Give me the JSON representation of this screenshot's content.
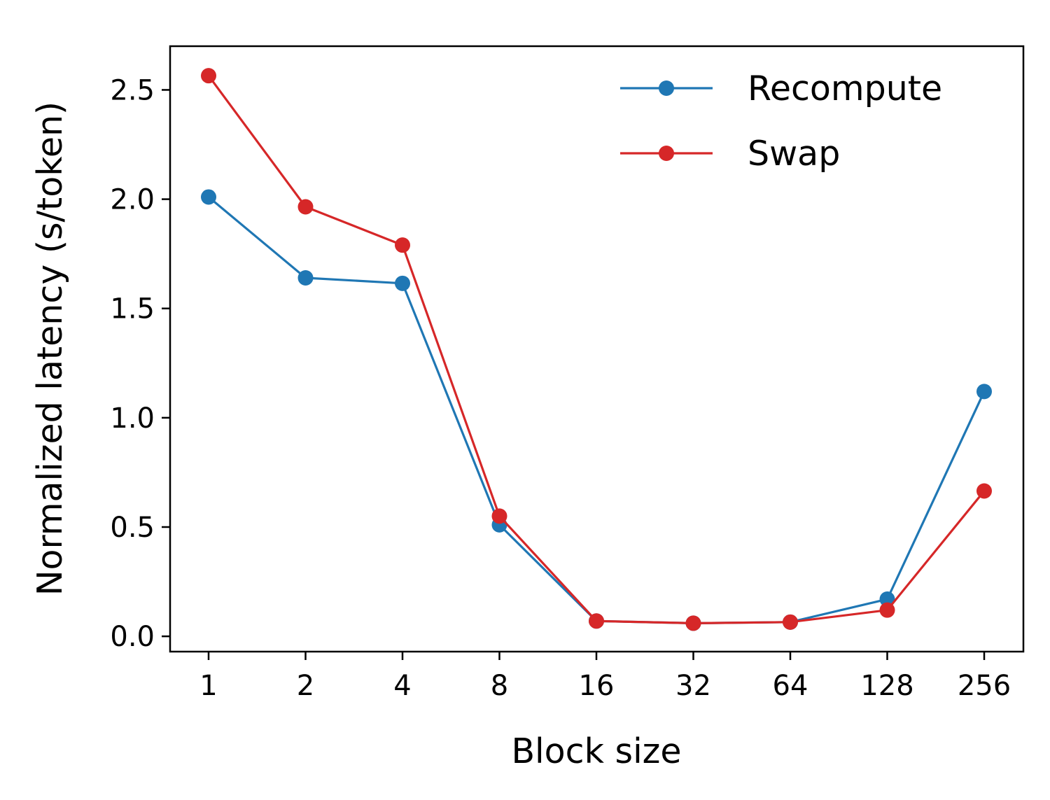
{
  "chart_data": {
    "type": "line",
    "xlabel": "Block size",
    "ylabel": "Normalized latency (s/token)",
    "categories": [
      "1",
      "2",
      "4",
      "8",
      "16",
      "32",
      "64",
      "128",
      "256"
    ],
    "y_ticks": [
      "0.0",
      "0.5",
      "1.0",
      "1.5",
      "2.0",
      "2.5"
    ],
    "ylim": [
      -0.07,
      2.7
    ],
    "grid": false,
    "legend_position": "top-right",
    "series": [
      {
        "name": "Recompute",
        "color": "#1f77b4",
        "marker": "circle",
        "values": [
          2.01,
          1.64,
          1.615,
          0.51,
          0.07,
          0.06,
          0.065,
          0.17,
          1.12
        ]
      },
      {
        "name": "Swap",
        "color": "#d62728",
        "marker": "circle",
        "values": [
          2.565,
          1.965,
          1.79,
          0.55,
          0.07,
          0.06,
          0.065,
          0.12,
          0.665
        ]
      }
    ]
  }
}
